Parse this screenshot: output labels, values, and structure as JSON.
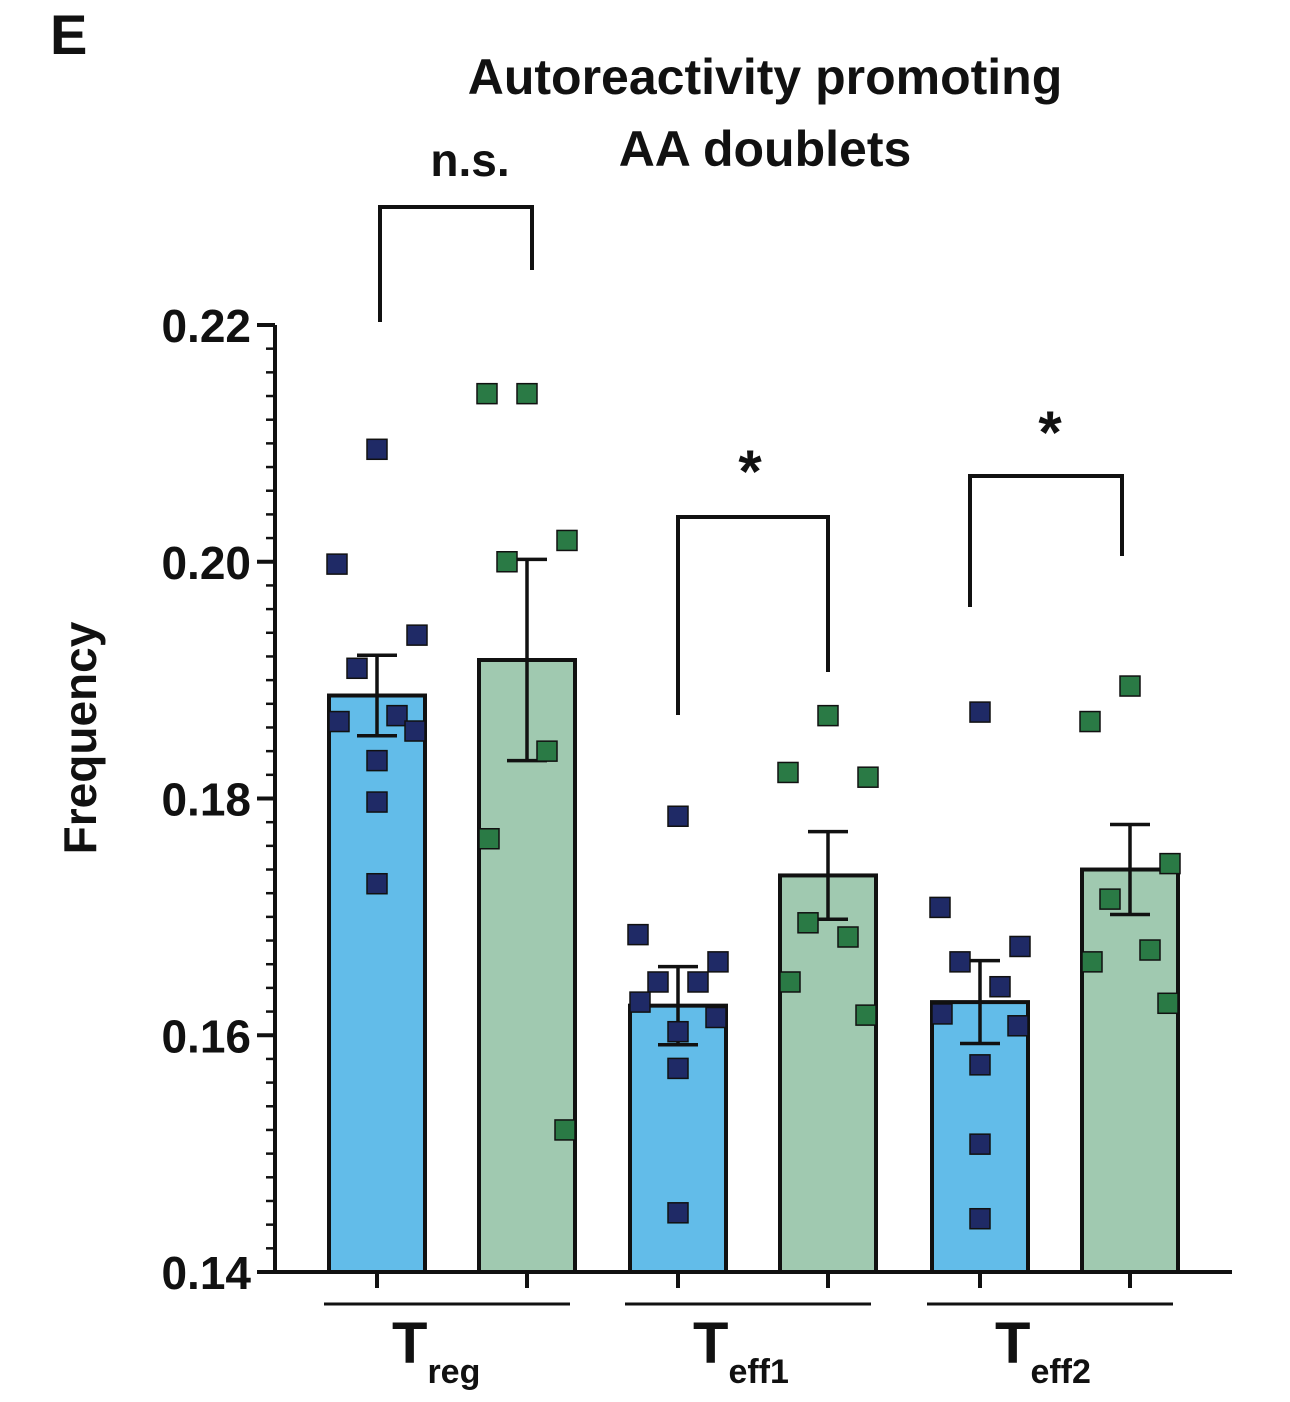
{
  "panel_label": "E",
  "chart_data": {
    "type": "bar",
    "title_lines": [
      "Autoreactivity promoting",
      "AA doublets"
    ],
    "ylabel": "Frequency",
    "ylim": [
      0.14,
      0.22
    ],
    "yticks": [
      "0.14",
      "0.16",
      "0.18",
      "0.20",
      "0.22"
    ],
    "groups": [
      {
        "main": "T",
        "sub": "reg"
      },
      {
        "main": "T",
        "sub": "eff1"
      },
      {
        "main": "T",
        "sub": "eff2"
      }
    ],
    "colors": {
      "bar_a": "#62bce9",
      "bar_b": "#a0c9b0",
      "point_a": "#1f2a66",
      "point_b": "#2a7a45",
      "line": "#111111"
    },
    "series": [
      {
        "values": [
          0.1887,
          0.1625,
          0.1628
        ],
        "sem": [
          0.0034,
          0.0033,
          0.0035
        ],
        "points": [
          [
            0.2095,
            0.1998,
            0.1938,
            0.191,
            0.187,
            0.1865,
            0.1857,
            0.1832,
            0.1797,
            0.1728
          ],
          [
            0.1785,
            0.1685,
            0.1662,
            0.1645,
            0.1645,
            0.1628,
            0.1615,
            0.1603,
            0.1572,
            0.145
          ],
          [
            0.1873,
            0.1708,
            0.1675,
            0.1662,
            0.1641,
            0.1618,
            0.1608,
            0.1575,
            0.1508,
            0.1445
          ]
        ]
      },
      {
        "values": [
          0.1917,
          0.1735,
          0.174
        ],
        "sem": [
          0.0085,
          0.0037,
          0.0038
        ],
        "points": [
          [
            0.2142,
            0.2142,
            0.2018,
            0.2,
            0.184,
            0.1766,
            0.152
          ],
          [
            0.187,
            0.1822,
            0.1818,
            0.1695,
            0.1683,
            0.1645,
            0.1617
          ],
          [
            0.1895,
            0.1865,
            0.1745,
            0.1715,
            0.1672,
            0.1662,
            0.1627
          ]
        ]
      }
    ],
    "significance": [
      "n.s.",
      "*",
      "*"
    ]
  }
}
